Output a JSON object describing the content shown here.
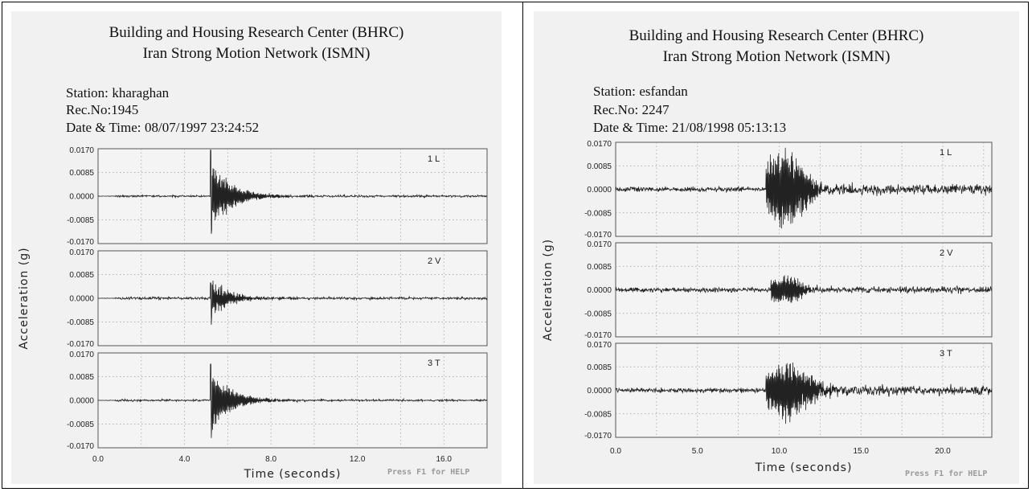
{
  "header": {
    "org": "Building and Housing Research Center (BHRC)",
    "network": "Iran Strong Motion Network (ISMN)"
  },
  "help_text": "Press F1 for HELP",
  "colors": {
    "background": "#f1f1f1",
    "trace": "#222222",
    "grid": "#9a9a9a"
  },
  "records": [
    {
      "station_label": "Station:",
      "station": "kharaghan",
      "rec_label": "Rec.No:",
      "rec_no": "1945",
      "datetime_label": "Date & Time:",
      "datetime": "08/07/1997  23:24:52"
    },
    {
      "station_label": "Station:",
      "station": "esfandan",
      "rec_label": "Rec.No:",
      "rec_no": "2247",
      "datetime_label": "Date & Time:",
      "datetime": "21/08/1998  05:13:13"
    }
  ],
  "chart_data": [
    {
      "type": "line",
      "title": "Building and Housing Research Center (BHRC) Iran Strong Motion Network (ISMN)",
      "xlabel": "Time (seconds)",
      "ylabel": "Acceleration (g)",
      "xlim": [
        0,
        18
      ],
      "ylim": [
        -0.017,
        0.017
      ],
      "x_ticks": [
        "0.0",
        "4.0",
        "8.0",
        "12.0",
        "16.0"
      ],
      "x_tick_values": [
        0,
        4,
        8,
        12,
        16
      ],
      "y_ticks": [
        "0.0170",
        "0.0085",
        "0.0000",
        "-0.0085",
        "-0.0170"
      ],
      "y_tick_values": [
        0.017,
        0.0085,
        0,
        -0.0085,
        -0.017
      ],
      "grid": true,
      "series": [
        {
          "name": "1 L",
          "onset": 5.2,
          "peak_pos": 0.0165,
          "peak_neg": -0.0135,
          "decay": 0.9,
          "noise": 0.0004,
          "coda": 0.0006
        },
        {
          "name": "2 V",
          "onset": 5.2,
          "peak_pos": 0.0055,
          "peak_neg": -0.0095,
          "decay": 0.8,
          "noise": 0.0005,
          "coda": 0.0004
        },
        {
          "name": "3 T",
          "onset": 5.2,
          "peak_pos": 0.013,
          "peak_neg": -0.0135,
          "decay": 0.9,
          "noise": 0.0004,
          "coda": 0.0006
        }
      ]
    },
    {
      "type": "line",
      "title": "Building and Housing Research Center (BHRC) Iran Strong Motion Network (ISMN)",
      "xlabel": "Time (seconds)",
      "ylabel": "Acceleration (g)",
      "xlim": [
        0,
        23
      ],
      "ylim": [
        -0.017,
        0.017
      ],
      "x_ticks": [
        "0.0",
        "5.0",
        "10.0",
        "15.0",
        "20.0"
      ],
      "x_tick_values": [
        0,
        5,
        10,
        15,
        20
      ],
      "y_ticks": [
        "0.0170",
        "0.0085",
        "0.0000",
        "-0.0085",
        "-0.0170"
      ],
      "y_tick_values": [
        0.017,
        0.0085,
        0,
        -0.0085,
        -0.017
      ],
      "grid": true,
      "series": [
        {
          "name": "1 L",
          "onset": 9.2,
          "peak_pos": 0.0165,
          "peak_neg": -0.0145,
          "decay": 3.0,
          "noise": 0.0009,
          "coda": 0.0018
        },
        {
          "name": "2 V",
          "onset": 9.5,
          "peak_pos": 0.005,
          "peak_neg": -0.0055,
          "decay": 2.5,
          "noise": 0.0009,
          "coda": 0.0008
        },
        {
          "name": "3 T",
          "onset": 9.2,
          "peak_pos": 0.0095,
          "peak_neg": -0.0125,
          "decay": 3.5,
          "noise": 0.0009,
          "coda": 0.0016
        }
      ]
    }
  ]
}
